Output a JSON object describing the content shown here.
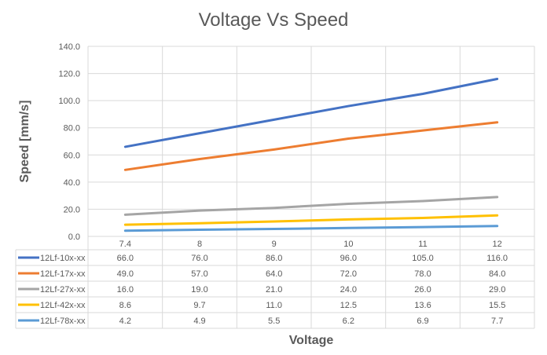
{
  "chart_data": {
    "type": "line",
    "title": "Voltage Vs Speed",
    "xlabel": "Voltage",
    "ylabel": "Speed [mm/s]",
    "ylim": [
      0,
      140
    ],
    "yticks": [
      "0.0",
      "20.0",
      "40.0",
      "60.0",
      "80.0",
      "100.0",
      "120.0",
      "140.0"
    ],
    "categories": [
      "7.4",
      "8",
      "9",
      "10",
      "11",
      "12"
    ],
    "grid": true,
    "legend": "data-table",
    "series": [
      {
        "name": "12Lf-10x-xx",
        "color": "#4472C4",
        "values": [
          66.0,
          76.0,
          86.0,
          96.0,
          105.0,
          116.0
        ],
        "labels": [
          "66.0",
          "76.0",
          "86.0",
          "96.0",
          "105.0",
          "116.0"
        ]
      },
      {
        "name": "12Lf-17x-xx",
        "color": "#ED7D31",
        "values": [
          49.0,
          57.0,
          64.0,
          72.0,
          78.0,
          84.0
        ],
        "labels": [
          "49.0",
          "57.0",
          "64.0",
          "72.0",
          "78.0",
          "84.0"
        ]
      },
      {
        "name": "12Lf-27x-xx",
        "color": "#A5A5A5",
        "values": [
          16.0,
          19.0,
          21.0,
          24.0,
          26.0,
          29.0
        ],
        "labels": [
          "16.0",
          "19.0",
          "21.0",
          "24.0",
          "26.0",
          "29.0"
        ]
      },
      {
        "name": "12Lf-42x-xx",
        "color": "#FFC000",
        "values": [
          8.6,
          9.7,
          11.0,
          12.5,
          13.6,
          15.5
        ],
        "labels": [
          "8.6",
          "9.7",
          "11.0",
          "12.5",
          "13.6",
          "15.5"
        ]
      },
      {
        "name": "12Lf-78x-xx",
        "color": "#5B9BD5",
        "values": [
          4.2,
          4.9,
          5.5,
          6.2,
          6.9,
          7.7
        ],
        "labels": [
          "4.2",
          "4.9",
          "5.5",
          "6.2",
          "6.9",
          "7.7"
        ]
      }
    ]
  }
}
